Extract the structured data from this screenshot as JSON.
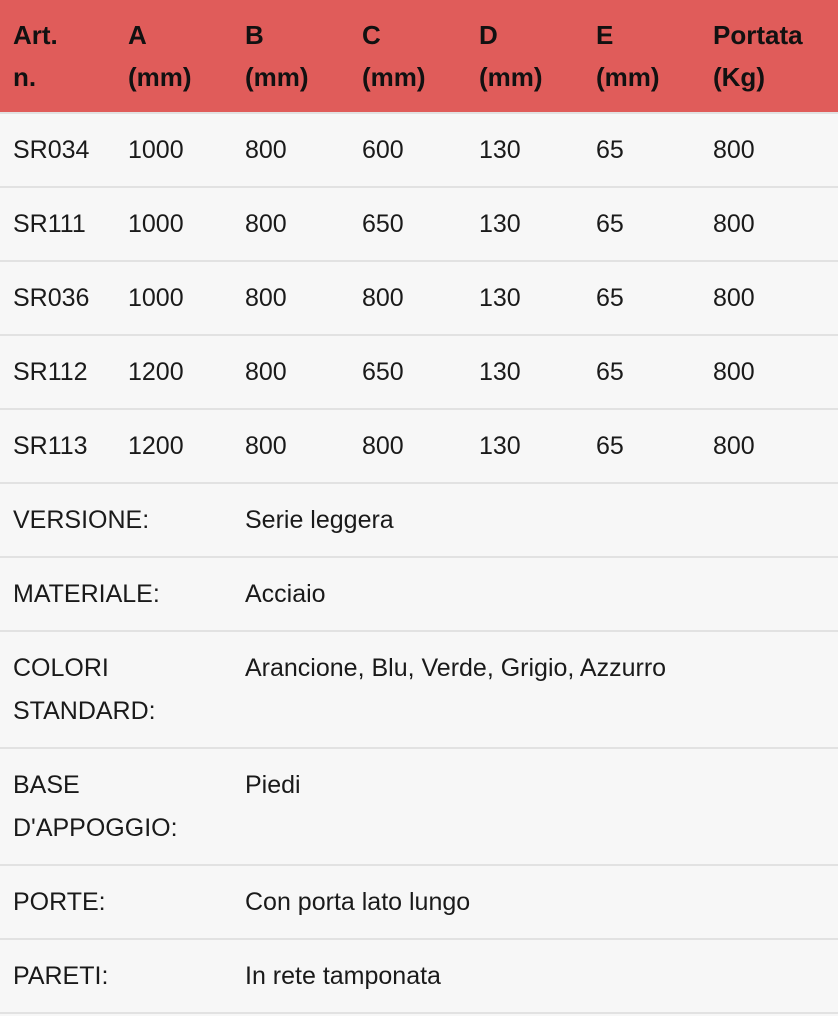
{
  "header": [
    "Art. n.",
    "A (mm)",
    "B (mm)",
    "C (mm)",
    "D (mm)",
    "E (mm)",
    "Portata (Kg)"
  ],
  "header_lines": [
    [
      "Art.",
      "n."
    ],
    [
      "A",
      "(mm)"
    ],
    [
      "B",
      "(mm)"
    ],
    [
      "C",
      "(mm)"
    ],
    [
      "D",
      "(mm)"
    ],
    [
      "E",
      "(mm)"
    ],
    [
      "Portata",
      "(Kg)"
    ]
  ],
  "rows": [
    [
      "SR034",
      "1000",
      "800",
      "600",
      "130",
      "65",
      "800"
    ],
    [
      "SR111",
      "1000",
      "800",
      "650",
      "130",
      "65",
      "800"
    ],
    [
      "SR036",
      "1000",
      "800",
      "800",
      "130",
      "65",
      "800"
    ],
    [
      "SR112",
      "1200",
      "800",
      "650",
      "130",
      "65",
      "800"
    ],
    [
      "SR113",
      "1200",
      "800",
      "800",
      "130",
      "65",
      "800"
    ]
  ],
  "specs": [
    {
      "label": "VERSIONE:",
      "value": "Serie leggera"
    },
    {
      "label": "MATERIALE:",
      "value": "Acciaio"
    },
    {
      "label": "COLORI STANDARD:",
      "value": "Arancione, Blu, Verde, Grigio, Azzurro"
    },
    {
      "label": "BASE D'APPOGGIO:",
      "value": "Piedi"
    },
    {
      "label": "PORTE:",
      "value": "Con porta lato lungo"
    },
    {
      "label": "PARETI:",
      "value": "In rete tamponata"
    }
  ],
  "colors": {
    "header_bg": "#e05c5a",
    "row_bg": "#f7f7f7",
    "border": "#e2e2e2"
  }
}
